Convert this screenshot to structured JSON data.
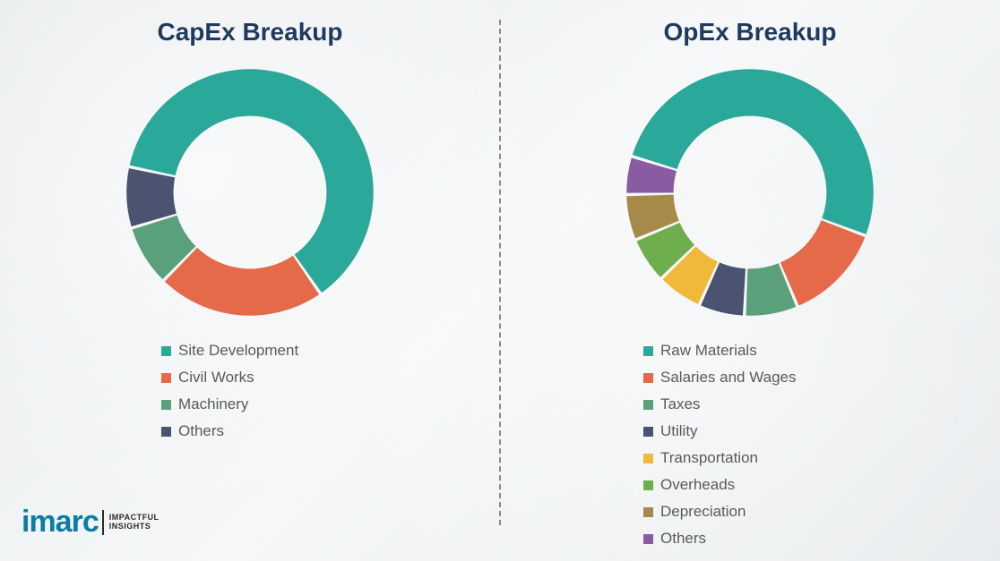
{
  "capex": {
    "title": "CapEx Breakup",
    "type": "donut",
    "inner_radius_ratio": 0.62,
    "gap_deg": 1.5,
    "start_angle_deg": -78,
    "background_color": "#f0f2f4",
    "slices": [
      {
        "label": "Site Development",
        "value": 62,
        "color": "#2aa89a"
      },
      {
        "label": "Civil Works",
        "value": 22,
        "color": "#e46a4a"
      },
      {
        "label": "Machinery",
        "value": 8,
        "color": "#5aa07a"
      },
      {
        "label": "Others",
        "value": 8,
        "color": "#4a5370"
      }
    ],
    "title_fontsize": 28,
    "title_color": "#1f3a5f",
    "legend_fontsize": 17,
    "legend_color": "#5a5a5a"
  },
  "opex": {
    "title": "OpEx Breakup",
    "type": "donut",
    "inner_radius_ratio": 0.62,
    "gap_deg": 1.5,
    "start_angle_deg": -73,
    "background_color": "#f0f2f4",
    "slices": [
      {
        "label": "Raw Materials",
        "value": 51,
        "color": "#2aa89a"
      },
      {
        "label": "Salaries and Wages",
        "value": 13,
        "color": "#e46a4a"
      },
      {
        "label": "Taxes",
        "value": 7,
        "color": "#5aa07a"
      },
      {
        "label": "Utility",
        "value": 6,
        "color": "#4a5370"
      },
      {
        "label": "Transportation",
        "value": 6,
        "color": "#f0b93a"
      },
      {
        "label": "Overheads",
        "value": 6,
        "color": "#6fae4d"
      },
      {
        "label": "Depreciation",
        "value": 6,
        "color": "#a68a4a"
      },
      {
        "label": "Others",
        "value": 5,
        "color": "#8a5aa3"
      }
    ],
    "title_fontsize": 28,
    "title_color": "#1f3a5f",
    "legend_fontsize": 17,
    "legend_color": "#5a5a5a"
  },
  "logo": {
    "brand": "imarc",
    "tagline_line1": "IMPACTFUL",
    "tagline_line2": "INSIGHTS",
    "brand_color": "#0a7ea4"
  },
  "divider": {
    "style": "dashed",
    "color": "#8a8a8a",
    "width": 2
  }
}
